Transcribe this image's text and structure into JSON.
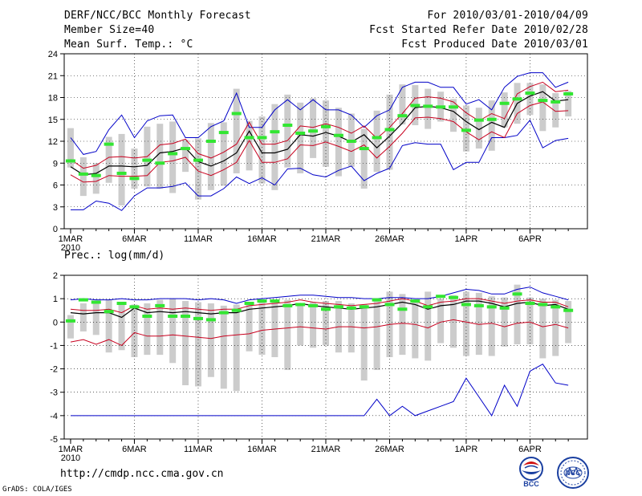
{
  "header": {
    "title": "DERF/NCC/BCC Monthly Forecast",
    "member_size": "Member Size=40",
    "variable": "Mean Surf. Temp.: °C",
    "period": "For 2010/03/01-2010/04/09",
    "started": "Fcst Started Refer Date 2010/02/28",
    "produced": "Fcst Produced Date 2010/03/01"
  },
  "footer": {
    "url": "http://cmdp.ncc.cma.gov.cn",
    "grads": "GrADS: COLA/IGES",
    "logo_bcc": "BCC",
    "logo_ncc": "NCC"
  },
  "colors": {
    "ensemble_bar": "#cccccc",
    "mean_line": "#000000",
    "std_lines": "#c8001e",
    "minmax_lines": "#0000c8",
    "median_marker": "#32e632",
    "grid": "#000000"
  },
  "chart_data": [
    {
      "type": "line",
      "title": "Mean Surf. Temp.: °C",
      "xlabel": "",
      "ylabel": "°C",
      "ylim": [
        0,
        24
      ],
      "yticks": [
        "0",
        "3",
        "6",
        "9",
        "12",
        "15",
        "18",
        "21",
        "24"
      ],
      "x_tick_labels": [
        {
          "day": 1,
          "label": "1MAR",
          "sub": "2010"
        },
        {
          "day": 6,
          "label": "6MAR"
        },
        {
          "day": 11,
          "label": "11MAR"
        },
        {
          "day": 16,
          "label": "16MAR"
        },
        {
          "day": 21,
          "label": "21MAR"
        },
        {
          "day": 26,
          "label": "26MAR"
        },
        {
          "day": 32,
          "label": "1APR"
        },
        {
          "day": 37,
          "label": "6APR"
        }
      ],
      "days": [
        1,
        2,
        3,
        4,
        5,
        6,
        7,
        8,
        9,
        10,
        11,
        12,
        13,
        14,
        15,
        16,
        17,
        18,
        19,
        20,
        21,
        22,
        23,
        24,
        25,
        26,
        27,
        28,
        29,
        30,
        31,
        32,
        33,
        34,
        35,
        36,
        37,
        38,
        39,
        40
      ],
      "series": [
        {
          "name": "mean",
          "values": [
            8.5,
            7.4,
            7.6,
            8.6,
            8.6,
            8.5,
            8.7,
            10.4,
            10.6,
            11.1,
            9.2,
            8.6,
            9.3,
            10.4,
            13.4,
            10.4,
            10.4,
            10.9,
            12.9,
            12.7,
            13.2,
            12.7,
            11.9,
            12.9,
            11.1,
            12.7,
            14.5,
            16.6,
            16.8,
            16.6,
            16.1,
            14.7,
            13.6,
            14.6,
            13.9,
            17.2,
            18.2,
            18.8,
            17.5,
            17.7
          ]
        },
        {
          "name": "mean_plus_std",
          "values": [
            9.5,
            8.3,
            8.7,
            9.8,
            9.9,
            9.7,
            9.9,
            11.5,
            11.7,
            12.3,
            10.3,
            9.7,
            10.5,
            11.6,
            14.6,
            11.6,
            11.6,
            12.1,
            14.1,
            13.9,
            14.4,
            13.9,
            13.1,
            14.1,
            12.4,
            13.9,
            15.8,
            17.9,
            18.1,
            17.9,
            17.4,
            15.9,
            14.8,
            15.8,
            15.1,
            18.5,
            19.5,
            20.1,
            18.8,
            19.0
          ]
        },
        {
          "name": "mean_minus_std",
          "values": [
            7.4,
            6.4,
            6.5,
            7.3,
            7.2,
            7.2,
            7.3,
            9.1,
            9.3,
            9.8,
            7.9,
            7.3,
            8.1,
            9.1,
            12.1,
            9.1,
            9.1,
            9.6,
            11.5,
            11.4,
            11.9,
            11.3,
            10.6,
            11.5,
            9.7,
            11.3,
            13.1,
            15.2,
            15.3,
            15.1,
            14.7,
            13.3,
            12.2,
            13.3,
            12.5,
            15.8,
            16.9,
            17.4,
            16.1,
            16.2
          ]
        },
        {
          "name": "max",
          "values": [
            12.5,
            10.2,
            10.6,
            13.6,
            15.6,
            12.5,
            14.8,
            15.5,
            15.6,
            12.5,
            12.5,
            14.0,
            14.8,
            18.6,
            13.9,
            13.9,
            16.3,
            17.7,
            16.3,
            17.7,
            16.3,
            16.3,
            15.6,
            13.9,
            15.5,
            16.3,
            19.4,
            20.1,
            20.1,
            19.4,
            19.4,
            17.1,
            17.7,
            16.3,
            19.4,
            20.9,
            21.4,
            21.4,
            19.4,
            20.1
          ]
        },
        {
          "name": "min",
          "values": [
            2.6,
            2.6,
            3.8,
            3.5,
            2.5,
            4.5,
            5.6,
            5.6,
            5.8,
            6.3,
            4.5,
            4.5,
            5.5,
            7.1,
            6.2,
            7.0,
            6.0,
            8.2,
            8.3,
            7.4,
            7.1,
            8.0,
            8.6,
            6.6,
            7.6,
            8.3,
            11.4,
            11.8,
            11.6,
            11.6,
            8.1,
            9.1,
            9.1,
            12.5,
            12.5,
            12.8,
            14.9,
            11.1,
            12.1,
            12.4
          ]
        },
        {
          "name": "median",
          "values": [
            9.3,
            7.5,
            7.3,
            11.6,
            7.6,
            6.9,
            9.4,
            9.0,
            10.3,
            11.0,
            9.4,
            12.0,
            13.2,
            15.8,
            12.5,
            12.5,
            13.3,
            14.2,
            13.1,
            13.4,
            14.0,
            12.8,
            12.0,
            11.0,
            12.5,
            13.6,
            15.5,
            16.9,
            16.8,
            16.7,
            16.7,
            13.5,
            14.9,
            15.0,
            17.2,
            17.8,
            18.6,
            17.6,
            17.4,
            18.5
          ]
        },
        {
          "name": "box_top",
          "values": [
            13.8,
            9.8,
            9.0,
            12.6,
            13.0,
            11.0,
            14.0,
            14.4,
            14.7,
            12.2,
            12.4,
            14.5,
            14.6,
            19.2,
            14.8,
            15.4,
            17.1,
            18.4,
            17.3,
            17.9,
            17.6,
            16.6,
            15.8,
            13.7,
            16.2,
            18.4,
            19.8,
            19.7,
            19.2,
            18.8,
            17.8,
            16.9,
            16.6,
            17.6,
            18.7,
            20.0,
            20.0,
            19.8,
            18.6,
            18.9
          ]
        },
        {
          "name": "box_bottom",
          "values": [
            8.4,
            4.5,
            4.8,
            6.3,
            3.2,
            5.5,
            5.8,
            5.5,
            4.9,
            7.8,
            4.0,
            5.3,
            5.9,
            7.6,
            8.0,
            6.2,
            5.3,
            8.4,
            7.6,
            9.7,
            8.5,
            7.2,
            8.5,
            5.5,
            7.8,
            8.1,
            14.3,
            14.2,
            13.7,
            14.7,
            13.3,
            10.6,
            11.0,
            10.7,
            13.9,
            14.4,
            15.6,
            13.4,
            13.9,
            15.4
          ]
        }
      ]
    },
    {
      "type": "line",
      "title": "Prec.: log(mm/d)",
      "xlabel": "",
      "ylabel": "log(mm/d)",
      "ylim": [
        -5,
        2
      ],
      "yticks": [
        "-5",
        "-4",
        "-3",
        "-2",
        "-1",
        "0",
        "1",
        "2"
      ],
      "x_tick_labels": [
        {
          "day": 1,
          "label": "1MAR",
          "sub": "2010"
        },
        {
          "day": 6,
          "label": "6MAR"
        },
        {
          "day": 11,
          "label": "11MAR"
        },
        {
          "day": 16,
          "label": "16MAR"
        },
        {
          "day": 21,
          "label": "21MAR"
        },
        {
          "day": 26,
          "label": "26MAR"
        },
        {
          "day": 32,
          "label": "1APR"
        },
        {
          "day": 37,
          "label": "6APR"
        }
      ],
      "days": [
        1,
        2,
        3,
        4,
        5,
        6,
        7,
        8,
        9,
        10,
        11,
        12,
        13,
        14,
        15,
        16,
        17,
        18,
        19,
        20,
        21,
        22,
        23,
        24,
        25,
        26,
        27,
        28,
        29,
        30,
        31,
        32,
        33,
        34,
        35,
        36,
        37,
        38,
        39,
        40
      ],
      "series": [
        {
          "name": "mean",
          "values": [
            0.4,
            0.35,
            0.4,
            0.4,
            0.2,
            0.6,
            0.4,
            0.45,
            0.4,
            0.45,
            0.4,
            0.35,
            0.4,
            0.4,
            0.55,
            0.6,
            0.65,
            0.7,
            0.8,
            0.7,
            0.65,
            0.6,
            0.55,
            0.6,
            0.65,
            0.75,
            0.85,
            0.75,
            0.55,
            0.7,
            0.75,
            0.9,
            0.9,
            0.8,
            0.65,
            0.8,
            0.85,
            0.7,
            0.75,
            0.55
          ]
        },
        {
          "name": "mean_plus_std",
          "values": [
            0.55,
            0.5,
            0.5,
            0.55,
            0.4,
            0.7,
            0.55,
            0.6,
            0.55,
            0.6,
            0.55,
            0.5,
            0.55,
            0.55,
            0.7,
            0.75,
            0.8,
            0.85,
            0.95,
            0.85,
            0.8,
            0.75,
            0.7,
            0.75,
            0.8,
            0.9,
            1.0,
            0.9,
            0.7,
            0.85,
            0.9,
            1.0,
            1.0,
            0.9,
            0.8,
            0.9,
            0.95,
            0.85,
            0.85,
            0.65
          ]
        },
        {
          "name": "mean_minus_std",
          "values": [
            -0.85,
            -0.75,
            -0.95,
            -0.75,
            -1.0,
            -0.45,
            -0.6,
            -0.6,
            -0.55,
            -0.6,
            -0.65,
            -0.7,
            -0.6,
            -0.55,
            -0.5,
            -0.35,
            -0.3,
            -0.25,
            -0.2,
            -0.25,
            -0.3,
            -0.2,
            -0.2,
            -0.25,
            -0.2,
            -0.1,
            -0.05,
            -0.1,
            -0.25,
            0.0,
            0.1,
            0.0,
            -0.1,
            -0.05,
            -0.2,
            -0.05,
            0.0,
            -0.2,
            -0.1,
            -0.25
          ]
        },
        {
          "name": "max",
          "values": [
            0.95,
            1.0,
            0.95,
            0.95,
            1.0,
            0.95,
            0.95,
            1.0,
            1.0,
            1.0,
            0.95,
            1.0,
            0.95,
            0.8,
            0.95,
            1.0,
            1.05,
            1.1,
            1.15,
            1.15,
            1.1,
            1.05,
            1.05,
            1.0,
            1.0,
            1.05,
            1.05,
            1.0,
            1.0,
            1.1,
            1.25,
            1.4,
            1.35,
            1.2,
            1.2,
            1.4,
            1.5,
            1.25,
            1.1,
            0.95
          ]
        },
        {
          "name": "min",
          "values": [
            -4.0,
            -4.0,
            -4.0,
            -4.0,
            -4.0,
            -4.0,
            -4.0,
            -4.0,
            -4.0,
            -4.0,
            -4.0,
            -4.0,
            -4.0,
            -4.0,
            -4.0,
            -4.0,
            -4.0,
            -4.0,
            -4.0,
            -4.0,
            -4.0,
            -4.0,
            -4.0,
            -4.0,
            -3.3,
            -4.0,
            -3.6,
            -4.0,
            -3.8,
            -3.6,
            -3.4,
            -2.4,
            -3.2,
            -4.0,
            -2.7,
            -3.6,
            -2.1,
            -1.8,
            -2.6,
            -2.7
          ]
        },
        {
          "name": "median",
          "values": [
            0.05,
            0.95,
            0.85,
            0.45,
            0.8,
            0.65,
            0.25,
            0.7,
            0.25,
            0.25,
            0.15,
            0.1,
            0.4,
            0.5,
            0.8,
            0.9,
            0.9,
            0.7,
            0.75,
            0.7,
            0.55,
            0.65,
            0.6,
            0.65,
            0.95,
            0.75,
            0.55,
            0.9,
            0.65,
            1.1,
            1.05,
            0.75,
            0.7,
            0.65,
            0.6,
            1.2,
            0.8,
            0.75,
            0.65,
            0.5
          ]
        },
        {
          "name": "box_top",
          "values": [
            0.3,
            0.8,
            0.9,
            0.95,
            0.85,
            0.75,
            0.8,
            0.95,
            1.0,
            0.9,
            0.85,
            0.8,
            0.7,
            0.75,
            0.8,
            0.85,
            0.9,
            0.95,
            0.8,
            0.85,
            0.9,
            0.9,
            0.8,
            0.75,
            0.95,
            1.3,
            1.2,
            0.9,
            1.3,
            1.0,
            1.15,
            1.3,
            1.25,
            1.1,
            1.05,
            1.6,
            1.05,
            1.0,
            0.95,
            0.9
          ]
        },
        {
          "name": "box_bottom",
          "values": [
            -0.7,
            -0.4,
            -0.55,
            -1.3,
            -1.2,
            -1.5,
            -1.4,
            -1.4,
            -1.75,
            -2.7,
            -2.75,
            -2.35,
            -2.85,
            -2.95,
            -1.25,
            -1.4,
            -1.5,
            -2.05,
            -1.0,
            -1.1,
            -1.0,
            -1.3,
            -1.3,
            -2.5,
            -2.05,
            -1.5,
            -1.4,
            -1.55,
            -1.65,
            -0.9,
            -1.1,
            -1.45,
            -1.4,
            -1.45,
            -1.05,
            -0.95,
            -0.95,
            -1.55,
            -1.45,
            -0.9
          ]
        }
      ]
    }
  ]
}
